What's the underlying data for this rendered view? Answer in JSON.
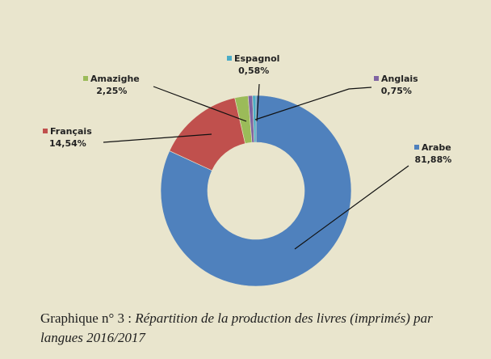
{
  "chart_data": {
    "type": "pie",
    "donut": true,
    "categories": [
      "Arabe",
      "Français",
      "Amazighe",
      "Anglais",
      "Espagnol"
    ],
    "values": [
      81.88,
      14.54,
      2.25,
      0.75,
      0.58
    ],
    "labels": [
      "81,88%",
      "14,54%",
      "2,25%",
      "0,75%",
      "0,58%"
    ],
    "colors": [
      "#4f81bd",
      "#c0504d",
      "#9bbb59",
      "#8064a2",
      "#4bacc6"
    ],
    "legend": "data labels with leader lines",
    "background": "#e9e5cd"
  },
  "caption": {
    "prefix": "Graphique n° 3 : ",
    "text": "Répartition de la production des livres (imprimés) par langues 2016/2017"
  }
}
